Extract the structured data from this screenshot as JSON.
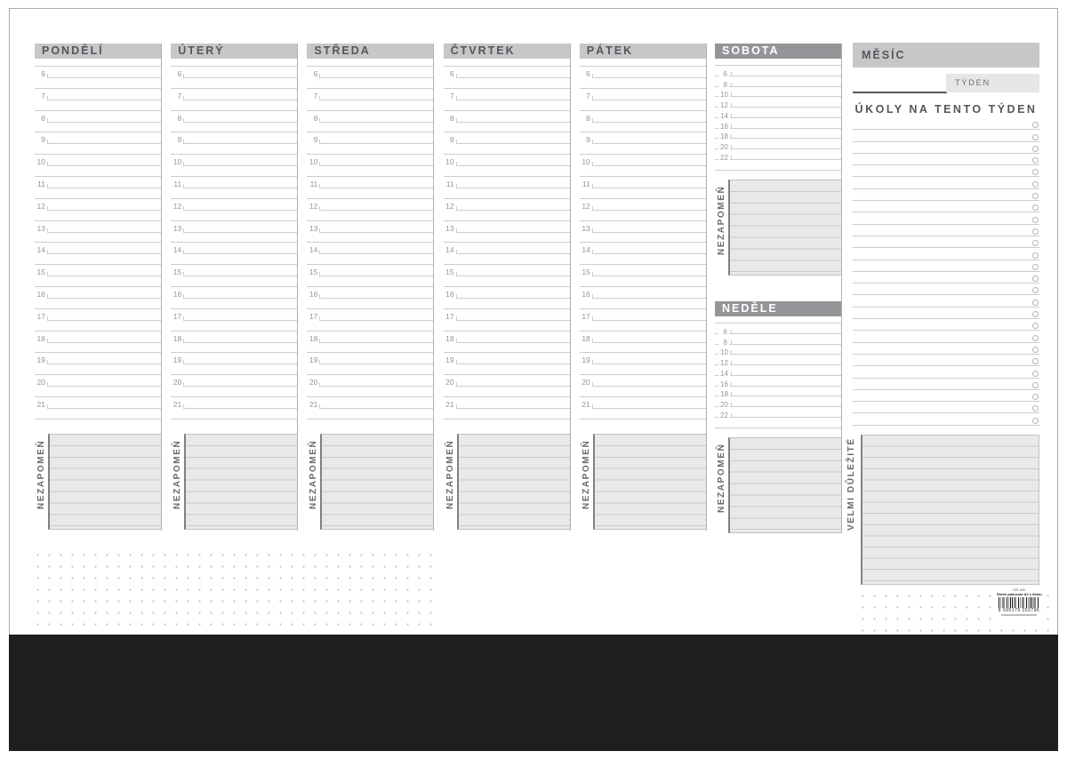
{
  "planner": {
    "weekdays": [
      {
        "name": "PONDĚLÍ"
      },
      {
        "name": "ÚTERÝ"
      },
      {
        "name": "STŘEDA"
      },
      {
        "name": "ČTVRTEK"
      },
      {
        "name": "PÁTEK"
      }
    ],
    "weekday_hours": [
      "6",
      "7",
      "8",
      "9",
      "10",
      "11",
      "12",
      "13",
      "14",
      "15",
      "16",
      "17",
      "18",
      "19",
      "20",
      "21"
    ],
    "weekend_days": [
      {
        "name": "SOBOTA"
      },
      {
        "name": "NEDĚLE"
      }
    ],
    "weekend_hours": [
      "6",
      "8",
      "10",
      "12",
      "14",
      "16",
      "18",
      "20",
      "22"
    ],
    "note_label": "NEZAPOMEŇ",
    "sidebar": {
      "month_label": "MĚSÍC",
      "week_label": "TÝDEN",
      "tasks_title": "ÚKOLY NA TENTO TÝDEN",
      "task_row_count": 26,
      "important_label": "VELMI DŮLEŽITÉ"
    },
    "barcode": {
      "sku": "OS 100",
      "product": "Stolní plánovač A2 s lištou",
      "ean": "8 595179 202796"
    }
  },
  "colors": {
    "header_bg": "#c6c7c8",
    "header_text": "#55565a",
    "weekend_header_bg": "#939598",
    "weekend_header_text": "#ffffff",
    "box_bg": "#e8e9e9",
    "box_line": "#c9cacc",
    "line": "#cbccce",
    "col_border": "#aeb0b2",
    "dark_line": "#58595b",
    "label_text": "#6a6b6e",
    "hour_text": "#939598",
    "base_strip": "#1e1e1c"
  }
}
